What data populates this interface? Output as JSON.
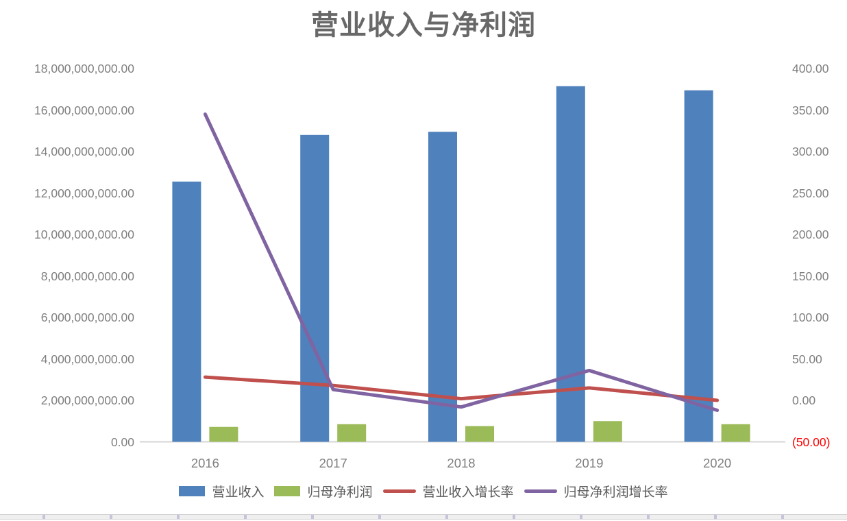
{
  "chart_data": {
    "type": "combo-bar-line",
    "title": "营业收入与净利润",
    "categories": [
      "2016",
      "2017",
      "2018",
      "2019",
      "2020"
    ],
    "series": [
      {
        "name": "营业收入",
        "type": "bar",
        "axis": "left",
        "color": "#4F81BD",
        "values": [
          12550000000,
          14800000000,
          14950000000,
          17150000000,
          16950000000
        ]
      },
      {
        "name": "归母净利润",
        "type": "bar",
        "axis": "left",
        "color": "#9BBB59",
        "values": [
          720000000,
          850000000,
          760000000,
          1000000000,
          850000000
        ]
      },
      {
        "name": "营业收入增长率",
        "type": "line",
        "axis": "right",
        "color": "#C0504D",
        "values": [
          28,
          18,
          2,
          15,
          0
        ]
      },
      {
        "name": "归母净利润增长率",
        "type": "line",
        "axis": "right",
        "color": "#8064A2",
        "values": [
          345,
          13,
          -8,
          36,
          -12
        ]
      }
    ],
    "left_axis": {
      "min": 0,
      "max": 18000000000,
      "step": 2000000000,
      "label_color": "#7F7F7F",
      "tick_labels": [
        "0.00",
        "2,000,000,000.00",
        "4,000,000,000.00",
        "6,000,000,000.00",
        "8,000,000,000.00",
        "10,000,000,000.00",
        "12,000,000,000.00",
        "14,000,000,000.00",
        "16,000,000,000.00",
        "18,000,000,000.00"
      ]
    },
    "right_axis": {
      "min": -50,
      "max": 400,
      "step": 50,
      "label_color": "#7F7F7F",
      "negative_label_color": "#FF0000",
      "tick_labels": [
        "(50.00)",
        "0.00",
        "50.00",
        "100.00",
        "150.00",
        "200.00",
        "250.00",
        "300.00",
        "350.00",
        "400.00"
      ]
    },
    "x_axis": {
      "label_color": "#7F7F7F",
      "labels": [
        "2016",
        "2017",
        "2018",
        "2019",
        "2020"
      ]
    },
    "style": {
      "title_color": "#686868",
      "axis_line_color": "#D6D6D6",
      "gridlines": "off",
      "legend_position": "bottom"
    }
  }
}
